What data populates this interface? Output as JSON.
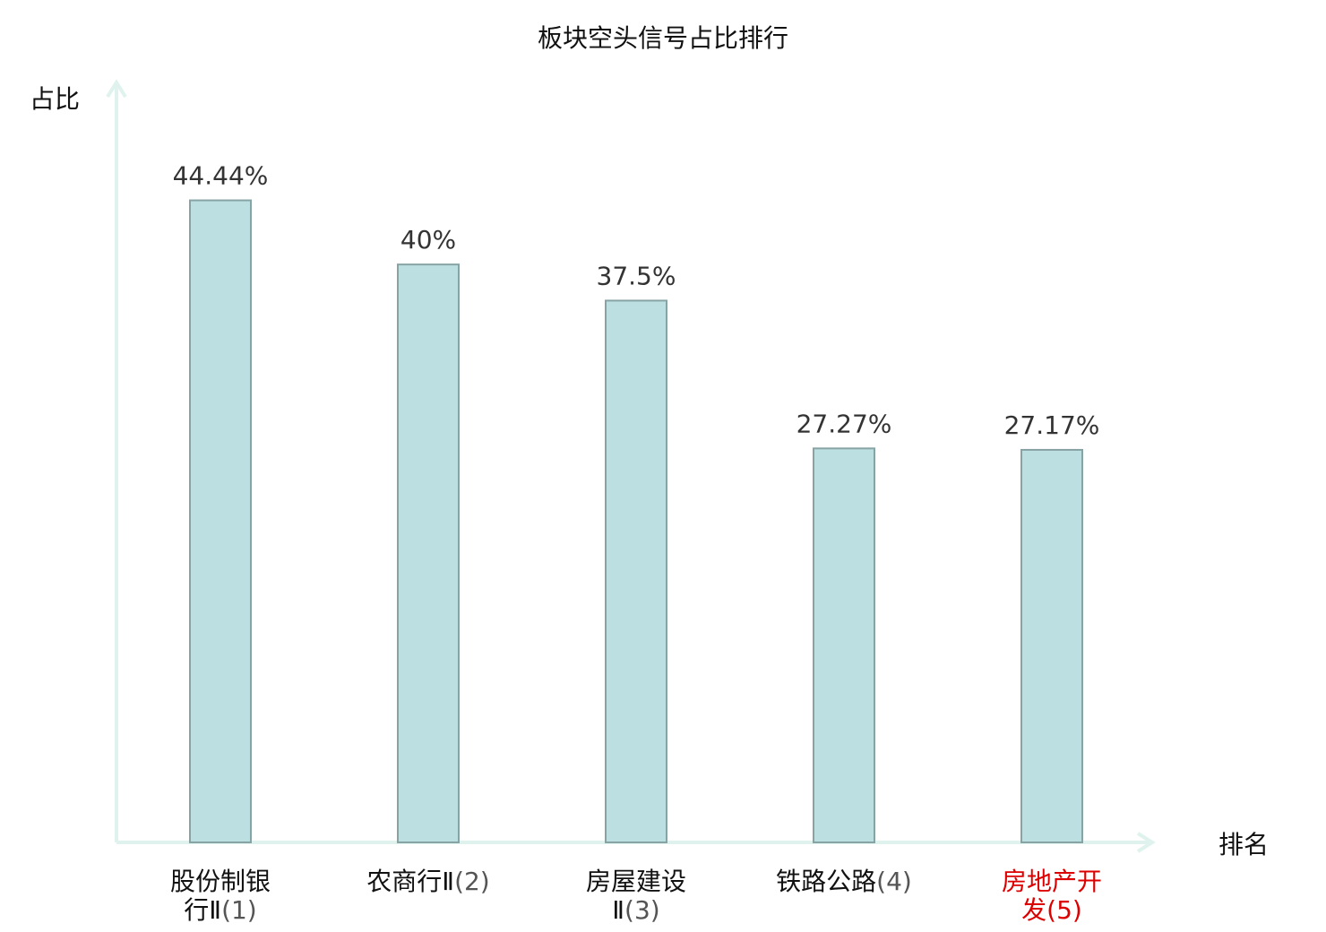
{
  "chart_data": {
    "type": "bar",
    "title": "板块空头信号占比排行",
    "ylabel": "占比",
    "xlabel": "排名",
    "ylim": [
      0,
      52.6
    ],
    "grid": false,
    "categories": [
      {
        "lines": [
          "股份制银",
          "行Ⅱ"
        ],
        "rank": "(1)"
      },
      {
        "lines": [
          "农商行Ⅱ"
        ],
        "rank": "(2)"
      },
      {
        "lines": [
          "房屋建设",
          "Ⅱ"
        ],
        "rank": "(3)"
      },
      {
        "lines": [
          "铁路公路"
        ],
        "rank": "(4)"
      },
      {
        "lines": [
          "房地产开",
          "发"
        ],
        "rank": "(5)",
        "highlight": true
      }
    ],
    "values": [
      44.44,
      40,
      37.5,
      27.27,
      27.17
    ],
    "value_labels": [
      "44.44%",
      "40%",
      "37.5%",
      "27.27%",
      "27.17%"
    ],
    "colors": {
      "bar_fill": "#bce0e1",
      "bar_stroke": "#87a3a4",
      "axis": "#dff2ee",
      "highlight_text": "#dd0000"
    }
  }
}
